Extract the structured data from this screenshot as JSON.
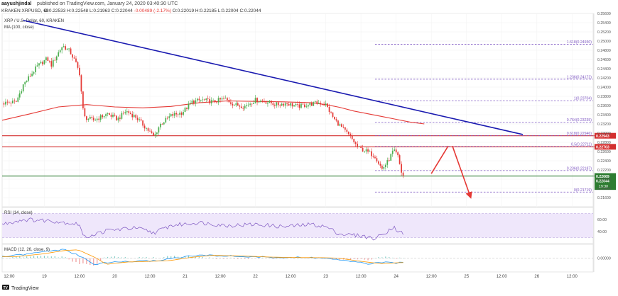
{
  "header": {
    "author": "aayushjindal",
    "published": "published on TradingView.com, January 24, 2020 03:40:30 UTC",
    "ticker": "KRAKEN:XRPUSD, 60",
    "ohlc": [
      "O:0.22533",
      "H:0.22548",
      "L:0.21963",
      "C:0.22044",
      "-0.00489 (-2.17%)",
      "O:0.22019",
      "H:0.22185",
      "L:0.22004",
      "C:0.22044"
    ]
  },
  "footer": {
    "brand": "TradingView"
  },
  "colors": {
    "up": "#4caf50",
    "down": "#e53935",
    "ma": "#e53935",
    "trendline": "#1a1ab0",
    "fib": "#7e57c2",
    "resistance": "#d32f2f",
    "support": "#2e7d32",
    "arrow": "#e53935",
    "rsi_bg": "#efe7fb",
    "rsi_line": "#7e57c2",
    "macd_line": "#2196f3",
    "signal_line": "#ff9800"
  },
  "chart_data": {
    "type": "candlestick",
    "title": "XRP / U.S. Dollar, 60, KRAKEN",
    "indicator_label": "MA (100, close)",
    "ylim": [
      0.214,
      0.256
    ],
    "y_ticks": [
      0.216,
      0.218,
      0.22,
      0.222,
      0.224,
      0.226,
      0.228,
      0.23,
      0.232,
      0.234,
      0.236,
      0.238,
      0.24,
      0.242,
      0.244,
      0.246,
      0.248,
      0.25,
      0.252,
      0.254,
      0.256
    ],
    "x_labels": [
      [
        "12:00",
        0.5
      ],
      [
        "19",
        3.0
      ],
      [
        "12:00",
        5.5
      ],
      [
        "20",
        8.0
      ],
      [
        "12:00",
        10.5
      ],
      [
        "21",
        13.0
      ],
      [
        "12:00",
        15.5
      ],
      [
        "22",
        18.0
      ],
      [
        "12:00",
        20.5
      ],
      [
        "23",
        23.0
      ],
      [
        "12:00",
        25.5
      ],
      [
        "24",
        28.0
      ],
      [
        "12:00",
        30.5
      ],
      [
        "25",
        33.0
      ],
      [
        "12:00",
        35.5
      ],
      [
        "26",
        38.0
      ],
      [
        "12:00",
        40.5
      ]
    ],
    "x_range": [
      0,
      42
    ],
    "anchors": [
      [
        0,
        0.2365
      ],
      [
        1,
        0.2368
      ],
      [
        1.5,
        0.2405
      ],
      [
        2.5,
        0.2445
      ],
      [
        3.2,
        0.2462
      ],
      [
        3.5,
        0.2448
      ],
      [
        4.0,
        0.2475
      ],
      [
        4.3,
        0.249
      ],
      [
        4.8,
        0.2478
      ],
      [
        5.2,
        0.2455
      ],
      [
        5.5,
        0.243
      ],
      [
        5.8,
        0.2335
      ],
      [
        6.5,
        0.2328
      ],
      [
        7.5,
        0.2342
      ],
      [
        8.2,
        0.233
      ],
      [
        8.8,
        0.2348
      ],
      [
        9.5,
        0.2335
      ],
      [
        10.2,
        0.2312
      ],
      [
        10.8,
        0.2292
      ],
      [
        11.2,
        0.2318
      ],
      [
        12.0,
        0.2338
      ],
      [
        12.8,
        0.2345
      ],
      [
        13.5,
        0.2368
      ],
      [
        14.2,
        0.2372
      ],
      [
        15.0,
        0.2368
      ],
      [
        15.8,
        0.2375
      ],
      [
        16.5,
        0.2362
      ],
      [
        17.2,
        0.2358
      ],
      [
        18.0,
        0.2372
      ],
      [
        18.8,
        0.2368
      ],
      [
        19.5,
        0.2362
      ],
      [
        20.2,
        0.2365
      ],
      [
        21.0,
        0.2358
      ],
      [
        21.8,
        0.2362
      ],
      [
        22.5,
        0.2366
      ],
      [
        23.0,
        0.2362
      ],
      [
        23.6,
        0.233
      ],
      [
        24.2,
        0.231
      ],
      [
        24.8,
        0.229
      ],
      [
        25.3,
        0.2268
      ],
      [
        25.8,
        0.2262
      ],
      [
        26.5,
        0.225
      ],
      [
        27.0,
        0.2222
      ],
      [
        27.4,
        0.2238
      ],
      [
        27.8,
        0.2262
      ],
      [
        28.1,
        0.2252
      ],
      [
        28.4,
        0.2212
      ],
      [
        28.6,
        0.2204
      ]
    ],
    "ma_points": [
      [
        0,
        0.2328
      ],
      [
        2.0,
        0.2342
      ],
      [
        4.0,
        0.2357
      ],
      [
        6.0,
        0.2362
      ],
      [
        8.0,
        0.2357
      ],
      [
        10.0,
        0.2355
      ],
      [
        12.0,
        0.2358
      ],
      [
        14.0,
        0.2366
      ],
      [
        16.0,
        0.237
      ],
      [
        18.0,
        0.2369
      ],
      [
        20.0,
        0.2368
      ],
      [
        22.0,
        0.2366
      ],
      [
        23.0,
        0.2362
      ],
      [
        24.0,
        0.2356
      ],
      [
        25.0,
        0.2348
      ],
      [
        26.0,
        0.2342
      ],
      [
        27.0,
        0.2336
      ],
      [
        28.0,
        0.233
      ],
      [
        29.0,
        0.2324
      ],
      [
        30.0,
        0.232
      ]
    ],
    "trendline": [
      [
        1.5,
        0.2545
      ],
      [
        37.0,
        0.2297
      ]
    ],
    "fib_levels": [
      {
        "label": "1.618(0.24930)",
        "value": 0.2493
      },
      {
        "label": "1.236(0.24172)",
        "value": 0.24172
      },
      {
        "label": "1(0.23704)",
        "value": 0.23704
      },
      {
        "label": "0.764(0.23235)",
        "value": 0.23235
      },
      {
        "label": "0.618(0.22946)",
        "value": 0.22946
      },
      {
        "label": "0.5(0.22711)",
        "value": 0.22711
      },
      {
        "label": "0.236(0.22187)",
        "value": 0.22187
      },
      {
        "label": "0(0.21719)",
        "value": 0.21719
      }
    ],
    "fib_x_range": [
      26.5,
      48
    ],
    "horizontal_lines": [
      {
        "name": "resistance-upper",
        "value": 0.22943,
        "kind": "resistance",
        "label": "0.22943"
      },
      {
        "name": "resistance-lower",
        "value": 0.22703,
        "kind": "resistance",
        "label": "0.22703"
      },
      {
        "name": "support",
        "value": 0.22069,
        "kind": "support",
        "label": "0.22069"
      }
    ],
    "current_price": {
      "value": 0.22044,
      "label": "0.22044",
      "countdown": "19:30"
    },
    "forecast_arrows": [
      [
        [
          30.5,
          0.2212
        ],
        [
          31.7,
          0.2272
        ]
      ],
      [
        [
          32.0,
          0.2272
        ],
        [
          33.3,
          0.216
        ]
      ]
    ],
    "rsi": {
      "label": "RSI (14, close)",
      "ticks": [
        60.0,
        40.0
      ],
      "range": [
        20,
        80
      ],
      "band": [
        30,
        70
      ],
      "anchors": [
        [
          0,
          52
        ],
        [
          1.5,
          60
        ],
        [
          3.5,
          58
        ],
        [
          5.5,
          52
        ],
        [
          5.8,
          30
        ],
        [
          7.5,
          42
        ],
        [
          9.5,
          46
        ],
        [
          10.8,
          38
        ],
        [
          12.0,
          50
        ],
        [
          14.0,
          55
        ],
        [
          16.0,
          50
        ],
        [
          18.0,
          52
        ],
        [
          20.0,
          48
        ],
        [
          22.0,
          52
        ],
        [
          23.0,
          48
        ],
        [
          24.0,
          36
        ],
        [
          25.5,
          33
        ],
        [
          26.5,
          28
        ],
        [
          27.2,
          38
        ],
        [
          27.8,
          48
        ],
        [
          28.2,
          40
        ],
        [
          28.6,
          36
        ]
      ]
    },
    "macd": {
      "label": "MACD (12, 26, close, 9)",
      "ticks": [
        0.0
      ],
      "tick_labels": [
        "0.00000"
      ],
      "range": [
        -1.0,
        1.0
      ],
      "anchors": [
        [
          0,
          0.1
        ],
        [
          2.0,
          0.3
        ],
        [
          3.5,
          0.55
        ],
        [
          4.5,
          0.6
        ],
        [
          5.8,
          0.0
        ],
        [
          6.5,
          -0.45
        ],
        [
          8.0,
          -0.28
        ],
        [
          10.0,
          -0.22
        ],
        [
          11.0,
          -0.18
        ],
        [
          12.5,
          0.05
        ],
        [
          14.0,
          0.2
        ],
        [
          16.0,
          0.16
        ],
        [
          18.0,
          0.08
        ],
        [
          20.0,
          0.04
        ],
        [
          22.0,
          0.03
        ],
        [
          23.0,
          0.0
        ],
        [
          24.5,
          -0.22
        ],
        [
          26.0,
          -0.4
        ],
        [
          27.5,
          -0.32
        ],
        [
          28.6,
          -0.36
        ]
      ]
    }
  }
}
